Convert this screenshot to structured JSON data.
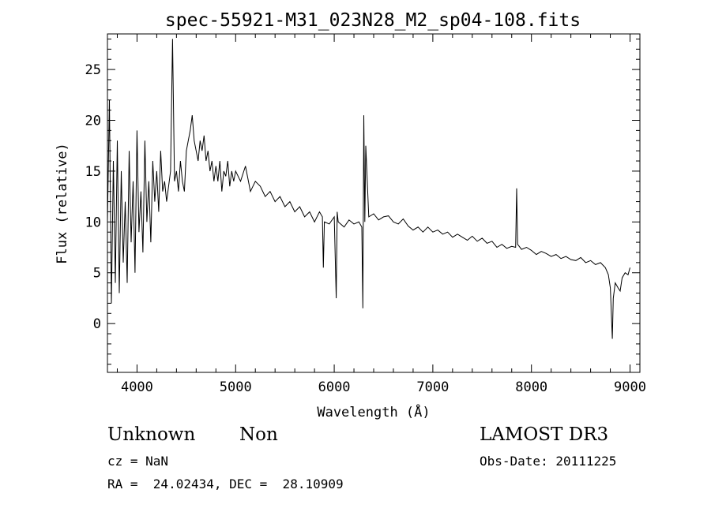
{
  "chart_data": {
    "type": "line",
    "title": "spec-55921-M31_023N28_M2_sp04-108.fits",
    "xlabel": "Wavelength (Å)",
    "ylabel": "Flux (relative)",
    "xlim": [
      3700,
      9100
    ],
    "ylim": [
      -4.8,
      28.5
    ],
    "xticks": [
      4000,
      5000,
      6000,
      7000,
      8000,
      9000
    ],
    "yticks": [
      0,
      5,
      10,
      15,
      20,
      25
    ],
    "grid": false,
    "series": [
      {
        "name": "flux",
        "x": [
          3700,
          3720,
          3740,
          3760,
          3780,
          3800,
          3820,
          3840,
          3860,
          3880,
          3900,
          3920,
          3940,
          3960,
          3980,
          4000,
          4020,
          4040,
          4060,
          4080,
          4100,
          4120,
          4140,
          4160,
          4180,
          4200,
          4220,
          4240,
          4260,
          4280,
          4300,
          4320,
          4340,
          4360,
          4380,
          4400,
          4420,
          4440,
          4460,
          4480,
          4500,
          4520,
          4540,
          4560,
          4580,
          4600,
          4620,
          4640,
          4660,
          4680,
          4700,
          4720,
          4740,
          4760,
          4780,
          4800,
          4820,
          4840,
          4860,
          4880,
          4900,
          4920,
          4940,
          4960,
          4980,
          5000,
          5050,
          5100,
          5150,
          5200,
          5250,
          5300,
          5350,
          5400,
          5450,
          5500,
          5550,
          5600,
          5650,
          5700,
          5750,
          5800,
          5850,
          5880,
          5890,
          5900,
          5950,
          6000,
          6020,
          6030,
          6040,
          6100,
          6150,
          6200,
          6250,
          6280,
          6290,
          6300,
          6310,
          6320,
          6350,
          6400,
          6450,
          6500,
          6550,
          6600,
          6650,
          6700,
          6750,
          6800,
          6850,
          6900,
          6950,
          7000,
          7050,
          7100,
          7150,
          7200,
          7250,
          7300,
          7350,
          7400,
          7450,
          7500,
          7550,
          7600,
          7650,
          7700,
          7750,
          7800,
          7840,
          7850,
          7860,
          7900,
          7950,
          8000,
          8050,
          8100,
          8150,
          8200,
          8250,
          8300,
          8350,
          8400,
          8450,
          8500,
          8550,
          8600,
          8650,
          8700,
          8750,
          8780,
          8800,
          8820,
          8830,
          8850,
          8880,
          8900,
          8920,
          8950,
          8980,
          9000
        ],
        "y": [
          10,
          22,
          2,
          16,
          4,
          18,
          3,
          15,
          6,
          12,
          4,
          17,
          8,
          14,
          5,
          19,
          9,
          13,
          7,
          18,
          10,
          14,
          8,
          16,
          12,
          15,
          11,
          17,
          13,
          14,
          12,
          13.5,
          15,
          28,
          14,
          15,
          13,
          16,
          14,
          13,
          17,
          18,
          19,
          20.5,
          18,
          17,
          16,
          18,
          17,
          18.5,
          16,
          17,
          15,
          16,
          14,
          15.5,
          14,
          16,
          13,
          15,
          14.5,
          16,
          13.5,
          15,
          14,
          15,
          14,
          15.5,
          13,
          14,
          13.5,
          12.5,
          13,
          12,
          12.5,
          11.5,
          12,
          11,
          11.5,
          10.5,
          11,
          10,
          11,
          10.5,
          5.5,
          10,
          9.8,
          10.5,
          2.5,
          11,
          10,
          9.5,
          10.2,
          9.8,
          10,
          9.5,
          1.5,
          20.5,
          10,
          17.5,
          10.5,
          10.8,
          10.2,
          10.5,
          10.6,
          10,
          9.8,
          10.3,
          9.6,
          9.2,
          9.5,
          9,
          9.5,
          9,
          9.2,
          8.8,
          9,
          8.5,
          8.8,
          8.5,
          8.2,
          8.6,
          8.1,
          8.4,
          7.9,
          8.1,
          7.5,
          7.8,
          7.4,
          7.6,
          7.5,
          13.3,
          7.8,
          7.3,
          7.5,
          7.2,
          6.8,
          7.1,
          6.9,
          6.6,
          6.8,
          6.4,
          6.6,
          6.3,
          6.2,
          6.5,
          6,
          6.2,
          5.8,
          6,
          5.5,
          4.8,
          3.5,
          -1.5,
          2.5,
          4,
          3.5,
          3.2,
          4.5,
          5,
          4.8,
          5.5
        ]
      }
    ]
  },
  "info": {
    "object_class": "Unknown",
    "object_subclass": "Non",
    "survey": "LAMOST DR3",
    "redshift": "cz = NaN",
    "obs_date": "Obs-Date: 20111225",
    "coordinates": "RA =  24.02434, DEC =  28.10909"
  }
}
